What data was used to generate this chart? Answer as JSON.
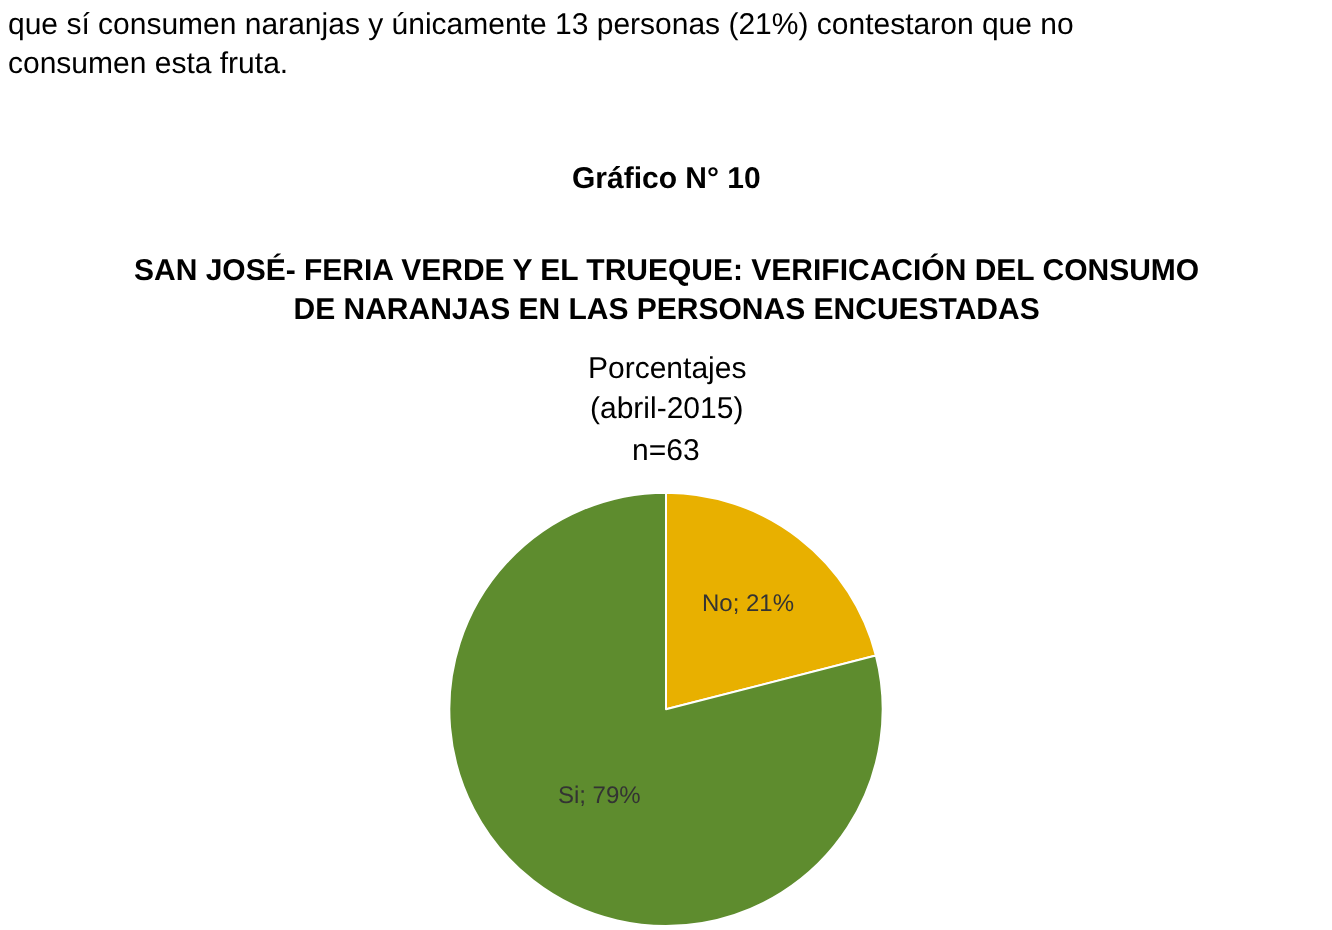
{
  "chart_data": {
    "type": "pie",
    "title": "Gráfico N° 10",
    "subtitle": "SAN JOSÉ- FERIA VERDE Y EL TRUEQUE: VERIFICACIÓN DEL CONSUMO\nDE NARANJAS EN LAS PERSONAS ENCUESTADAS",
    "annotations": [
      "que sí consumen naranjas y únicamente 13 personas (21%) contestaron que no\nconsumen esta fruta.",
      "Porcentajes",
      "(abril-2015)",
      "n=63"
    ],
    "categories": [
      "No",
      "Si"
    ],
    "values": [
      21,
      79
    ],
    "colors": [
      "#e8b000",
      "#5e8c2e"
    ],
    "value_labels": [
      "21%",
      "79%"
    ],
    "legend": false
  }
}
